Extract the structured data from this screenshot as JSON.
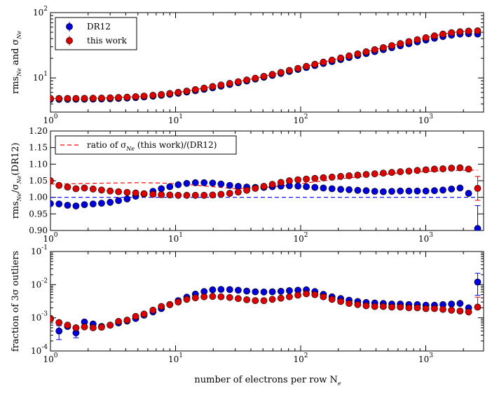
{
  "figure": {
    "xlabel": "number of electrons per row N_e"
  },
  "colors": {
    "dr12": "#0000dd",
    "this_work": "#dd0000",
    "model": "#ff0000",
    "ratio": "#ff0000",
    "unity": "#0000ff"
  },
  "chart_data": [
    {
      "type": "scatter",
      "ylabel": "rms_Ne and σ_Ne",
      "xscale": "log",
      "yscale": "log",
      "xlim": [
        1,
        2900
      ],
      "ylim": [
        3,
        100
      ],
      "x_ticks": [
        "10^0",
        "10^1",
        "10^2",
        "10^3"
      ],
      "y_ticks": [
        "10^1",
        "10^2"
      ],
      "legend": {
        "location": "upper-left",
        "entries": [
          "DR12",
          "this work"
        ]
      },
      "x": [
        1.0,
        1.17,
        1.37,
        1.6,
        1.87,
        2.19,
        2.56,
        3.0,
        3.5,
        4.1,
        4.8,
        5.6,
        6.6,
        7.7,
        9.0,
        10.5,
        12.3,
        14.4,
        16.9,
        19.8,
        23.1,
        27.1,
        31.7,
        37.1,
        43.4,
        50.8,
        59.4,
        69.5,
        81.3,
        95.1,
        111,
        130,
        152,
        178,
        209,
        244,
        286,
        334,
        391,
        458,
        535,
        626,
        733,
        857,
        1003,
        1174,
        1373,
        1607,
        1880,
        2200,
        2600
      ],
      "series": [
        {
          "name": "DR12",
          "y": [
            4.7,
            4.7,
            4.7,
            4.71,
            4.72,
            4.74,
            4.76,
            4.8,
            4.85,
            4.92,
            5.0,
            5.12,
            5.26,
            5.42,
            5.6,
            5.82,
            6.08,
            6.37,
            6.7,
            7.07,
            7.48,
            7.94,
            8.44,
            8.99,
            9.59,
            10.24,
            10.95,
            11.72,
            12.55,
            13.45,
            14.42,
            15.47,
            16.6,
            17.8,
            19.1,
            20.5,
            22.0,
            23.6,
            25.3,
            27.1,
            29.0,
            31.1,
            33.3,
            35.6,
            38.0,
            40.5,
            43.0,
            45.2,
            46.8,
            47.5,
            47.0
          ]
        },
        {
          "name": "this work",
          "y": [
            4.85,
            4.85,
            4.86,
            4.86,
            4.87,
            4.89,
            4.92,
            4.96,
            5.01,
            5.08,
            5.16,
            5.28,
            5.42,
            5.58,
            5.78,
            6.02,
            6.3,
            6.62,
            6.98,
            7.38,
            7.8,
            8.26,
            8.76,
            9.3,
            9.91,
            10.58,
            11.32,
            12.14,
            13.04,
            14.0,
            15.06,
            16.2,
            17.44,
            18.76,
            20.18,
            21.72,
            23.38,
            25.14,
            27.05,
            29.08,
            31.24,
            33.54,
            35.99,
            38.59,
            41.34,
            44.1,
            46.8,
            49.2,
            51.0,
            52.1,
            52.6
          ]
        }
      ]
    },
    {
      "type": "scatter",
      "ylabel": "rms_Ne/σ_Ne(DR12)",
      "xscale": "log",
      "xlim": [
        1,
        2900
      ],
      "ylim": [
        0.9,
        1.2
      ],
      "x_ticks": [
        "10^0",
        "10^1",
        "10^2",
        "10^3"
      ],
      "y_ticks": [
        "0.90",
        "0.95",
        "1.00",
        "1.05",
        "1.10",
        "1.15",
        "1.20"
      ],
      "legend": {
        "location": "upper-left",
        "entries": [
          "ratio of σ_Ne (this work)/(DR12)"
        ]
      },
      "x": [
        1.0,
        1.17,
        1.37,
        1.6,
        1.87,
        2.19,
        2.56,
        3.0,
        3.5,
        4.1,
        4.8,
        5.6,
        6.6,
        7.7,
        9.0,
        10.5,
        12.3,
        14.4,
        16.9,
        19.8,
        23.1,
        27.1,
        31.7,
        37.1,
        43.4,
        50.8,
        59.4,
        69.5,
        81.3,
        95.1,
        111,
        130,
        152,
        178,
        209,
        244,
        286,
        334,
        391,
        458,
        535,
        626,
        733,
        857,
        1003,
        1174,
        1373,
        1607,
        1880,
        2200,
        2600
      ],
      "series": [
        {
          "name": "DR12",
          "y": [
            0.981,
            0.98,
            0.976,
            0.974,
            0.978,
            0.98,
            0.982,
            0.985,
            0.99,
            0.995,
            1.003,
            1.01,
            1.018,
            1.026,
            1.032,
            1.038,
            1.042,
            1.044,
            1.044,
            1.043,
            1.04,
            1.036,
            1.033,
            1.031,
            1.03,
            1.03,
            1.032,
            1.034,
            1.035,
            1.034,
            1.032,
            1.03,
            1.028,
            1.026,
            1.024,
            1.023,
            1.021,
            1.02,
            1.018,
            1.017,
            1.018,
            1.019,
            1.019,
            1.019,
            1.019,
            1.02,
            1.022,
            1.025,
            1.028,
            1.012,
            0.906
          ],
          "error_last": [
            0.975,
            0.906
          ]
        },
        {
          "name": "this work",
          "y": [
            1.05,
            1.036,
            1.031,
            1.026,
            1.028,
            1.025,
            1.022,
            1.019,
            1.017,
            1.015,
            1.013,
            1.011,
            1.009,
            1.008,
            1.007,
            1.006,
            1.006,
            1.006,
            1.006,
            1.007,
            1.009,
            1.012,
            1.016,
            1.021,
            1.027,
            1.033,
            1.039,
            1.045,
            1.05,
            1.053,
            1.055,
            1.057,
            1.059,
            1.061,
            1.063,
            1.065,
            1.067,
            1.069,
            1.071,
            1.073,
            1.075,
            1.077,
            1.079,
            1.081,
            1.083,
            1.085,
            1.086,
            1.088,
            1.089,
            1.085,
            1.027
          ],
          "error_last": [
            1.063,
            0.991
          ]
        },
        {
          "name": "ratio of σ_Ne (this work)/(DR12)",
          "style": "dashed-line",
          "x": [
            1.0,
            1.5,
            2.0,
            3.0,
            5.0,
            8.0,
            12.0,
            20.0,
            30.0,
            50.0,
            80.0,
            120.0,
            200.0,
            350.0,
            600.0,
            1000.0,
            1600.0,
            2600.0
          ],
          "y": [
            1.04,
            1.041,
            1.042,
            1.043,
            1.044,
            1.043,
            1.039,
            1.032,
            1.026,
            1.029,
            1.037,
            1.045,
            1.055,
            1.065,
            1.073,
            1.078,
            1.081,
            1.082
          ]
        },
        {
          "name": "unity",
          "style": "dashed-line",
          "x": [
            1.0,
            2600.0
          ],
          "y": [
            1.0,
            1.0
          ]
        }
      ]
    },
    {
      "type": "scatter",
      "ylabel": "fraction of 3σ outliers",
      "xscale": "log",
      "yscale": "log",
      "xlim": [
        1,
        2900
      ],
      "ylim": [
        0.0001,
        0.1
      ],
      "x_ticks": [
        "10^0",
        "10^1",
        "10^2",
        "10^3"
      ],
      "y_ticks": [
        "10^-4",
        "10^-3",
        "10^-2",
        "10^-1"
      ],
      "x": [
        1.0,
        1.17,
        1.37,
        1.6,
        1.87,
        2.19,
        2.56,
        3.0,
        3.5,
        4.1,
        4.8,
        5.6,
        6.6,
        7.7,
        9.0,
        10.5,
        12.3,
        14.4,
        16.9,
        19.8,
        23.1,
        27.1,
        31.7,
        37.1,
        43.4,
        50.8,
        59.4,
        69.5,
        81.3,
        95.1,
        111,
        130,
        152,
        178,
        209,
        244,
        286,
        334,
        391,
        458,
        535,
        626,
        733,
        857,
        1003,
        1174,
        1373,
        1607,
        1880,
        2200,
        2600
      ],
      "series": [
        {
          "name": "DR12",
          "y": [
            0.00095,
            0.0004,
            0.00055,
            0.00035,
            0.00075,
            0.00065,
            0.00055,
            0.0006,
            0.0007,
            0.0008,
            0.00095,
            0.0012,
            0.0015,
            0.0019,
            0.0025,
            0.0033,
            0.0042,
            0.0052,
            0.0062,
            0.007,
            0.0072,
            0.0071,
            0.0068,
            0.0064,
            0.0061,
            0.006,
            0.0061,
            0.0063,
            0.0066,
            0.0068,
            0.007,
            0.0062,
            0.0051,
            0.0043,
            0.0038,
            0.0034,
            0.0031,
            0.0029,
            0.0028,
            0.0027,
            0.0026,
            0.0026,
            0.0025,
            0.0025,
            0.0024,
            0.0024,
            0.0025,
            0.0026,
            0.0027,
            0.002,
            0.012
          ],
          "error_bars": [
            {
              "index": 1,
              "low": 0.00022,
              "high": 0.00058
            },
            {
              "index": 3,
              "low": 0.00025,
              "high": 0.00045
            },
            {
              "index": 50,
              "low": 0.0048,
              "high": 0.022
            }
          ]
        },
        {
          "name": "this work",
          "y": [
            0.00092,
            0.00072,
            0.0006,
            0.0005,
            0.00053,
            0.0005,
            0.00052,
            0.0006,
            0.00078,
            0.00085,
            0.0011,
            0.0013,
            0.0017,
            0.0022,
            0.0025,
            0.003,
            0.0036,
            0.004,
            0.0043,
            0.0044,
            0.0043,
            0.0041,
            0.0038,
            0.0035,
            0.0033,
            0.0033,
            0.0036,
            0.0039,
            0.0043,
            0.0048,
            0.0053,
            0.005,
            0.0043,
            0.0036,
            0.0031,
            0.0027,
            0.0025,
            0.0023,
            0.0022,
            0.0022,
            0.0021,
            0.0021,
            0.002,
            0.002,
            0.0019,
            0.0019,
            0.0018,
            0.0017,
            0.0016,
            0.0015,
            0.0021
          ],
          "error_bars": [
            {
              "index": 50,
              "low": 0.0019,
              "high": 0.0042
            }
          ]
        }
      ]
    }
  ]
}
